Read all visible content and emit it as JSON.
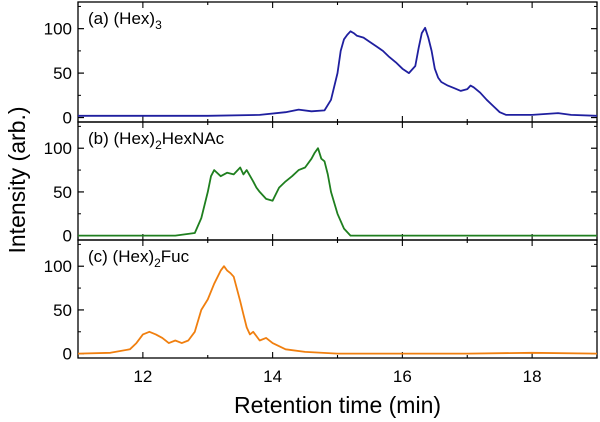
{
  "chart_data": {
    "type": "line",
    "xlabel": "Retention time (min)",
    "ylabel": "Intensity (arb.)",
    "xlim": [
      11,
      19
    ],
    "x_ticks": [
      12,
      14,
      16,
      18
    ],
    "ylim": [
      -5,
      130
    ],
    "y_ticks": [
      0,
      50,
      100
    ],
    "panels": [
      {
        "label_prefix": "(a) (Hex)",
        "label_sub": "3",
        "label_suffix": "",
        "color": "#1f1f9f",
        "series": {
          "x": [
            11.0,
            12.0,
            13.0,
            13.8,
            14.2,
            14.4,
            14.6,
            14.8,
            14.9,
            15.0,
            15.05,
            15.1,
            15.15,
            15.2,
            15.25,
            15.3,
            15.4,
            15.5,
            15.6,
            15.7,
            15.8,
            15.9,
            16.0,
            16.1,
            16.2,
            16.25,
            16.3,
            16.35,
            16.4,
            16.45,
            16.5,
            16.55,
            16.6,
            16.7,
            16.8,
            16.9,
            17.0,
            17.05,
            17.1,
            17.2,
            17.3,
            17.4,
            17.5,
            17.6,
            18.0,
            18.4,
            18.6,
            19.0
          ],
          "y": [
            2,
            2,
            2,
            3,
            6,
            9,
            7,
            8,
            20,
            50,
            75,
            88,
            93,
            97,
            95,
            92,
            90,
            85,
            80,
            75,
            68,
            62,
            55,
            50,
            58,
            78,
            95,
            101,
            90,
            75,
            55,
            45,
            40,
            36,
            33,
            30,
            32,
            36,
            34,
            28,
            20,
            13,
            6,
            3,
            3,
            5,
            3,
            2
          ]
        }
      },
      {
        "label_prefix": "(b) (Hex)",
        "label_sub": "2",
        "label_suffix": "HexNAc",
        "color": "#1f7f1f",
        "series": {
          "x": [
            11.0,
            12.0,
            12.5,
            12.8,
            12.9,
            13.0,
            13.05,
            13.1,
            13.2,
            13.3,
            13.4,
            13.5,
            13.55,
            13.6,
            13.7,
            13.75,
            13.8,
            13.9,
            14.0,
            14.1,
            14.2,
            14.3,
            14.4,
            14.5,
            14.6,
            14.65,
            14.7,
            14.75,
            14.8,
            14.85,
            14.9,
            15.0,
            15.1,
            15.2,
            16.0,
            19.0
          ],
          "y": [
            0,
            0,
            0,
            3,
            20,
            50,
            68,
            75,
            68,
            72,
            70,
            78,
            70,
            75,
            62,
            55,
            50,
            42,
            40,
            55,
            62,
            68,
            75,
            78,
            88,
            95,
            100,
            88,
            85,
            70,
            50,
            25,
            8,
            0,
            0,
            0
          ]
        }
      },
      {
        "label_prefix": "(c) (Hex)",
        "label_sub": "2",
        "label_suffix": "Fuc",
        "color": "#f07f0f",
        "series": {
          "x": [
            11.0,
            11.5,
            11.8,
            11.9,
            12.0,
            12.1,
            12.2,
            12.3,
            12.4,
            12.5,
            12.6,
            12.7,
            12.8,
            12.9,
            13.0,
            13.1,
            13.2,
            13.25,
            13.3,
            13.35,
            13.4,
            13.5,
            13.55,
            13.6,
            13.65,
            13.7,
            13.8,
            13.9,
            14.0,
            14.2,
            14.5,
            15.0,
            16.0,
            17.0,
            18.0,
            19.0
          ],
          "y": [
            0,
            1,
            5,
            12,
            22,
            25,
            22,
            18,
            12,
            15,
            12,
            15,
            25,
            50,
            62,
            80,
            95,
            100,
            95,
            92,
            88,
            60,
            45,
            30,
            22,
            25,
            15,
            18,
            12,
            5,
            2,
            0,
            0,
            0,
            1,
            0
          ]
        }
      }
    ]
  }
}
